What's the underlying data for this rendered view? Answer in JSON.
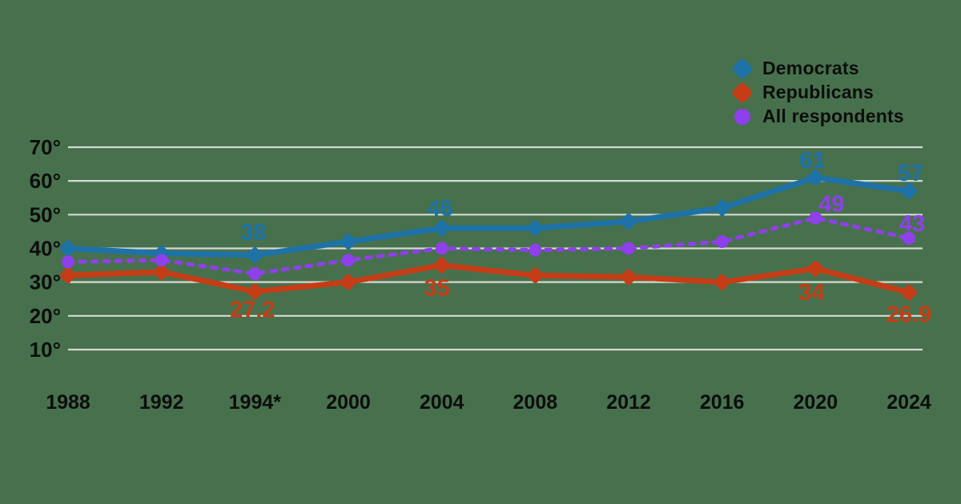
{
  "canvas": {
    "background_color": "#47714d",
    "text_color": "#0d0d0d",
    "gridline_color": "#d6d9d2"
  },
  "chart_data": {
    "type": "line",
    "categories": [
      "1988",
      "1992",
      "1994*",
      "2000",
      "2004",
      "2008",
      "2012",
      "2016",
      "2020",
      "2024"
    ],
    "x_axis": {
      "tick_labels": [
        "1988",
        "1992",
        "1994*",
        "2000",
        "2004",
        "2008",
        "2012",
        "2016",
        "2020",
        "2024"
      ]
    },
    "y_axis": {
      "tick_labels": [
        "10°",
        "20°",
        "30°",
        "40°",
        "50°",
        "60°",
        "70°"
      ],
      "tick_values": [
        10,
        20,
        30,
        40,
        50,
        60,
        70
      ],
      "min": 10,
      "max": 70,
      "unit": "°",
      "grid": "horizontal-only"
    },
    "legend_position": "top-right",
    "series": [
      {
        "name": "Democrats",
        "color": "#1d72a8",
        "line_style": "solid",
        "marker": "diamond",
        "values": [
          40,
          38.5,
          38,
          42,
          46,
          46,
          48,
          52,
          61,
          57
        ],
        "point_labels": [
          {
            "index": 2,
            "text": "38",
            "dx": -2,
            "dy": -19
          },
          {
            "index": 4,
            "text": "46",
            "dx": -2,
            "dy": -15
          },
          {
            "index": 8,
            "text": "61",
            "dx": -4,
            "dy": -12
          },
          {
            "index": 9,
            "text": "57",
            "dx": 2,
            "dy": -13
          }
        ]
      },
      {
        "name": "Republicans",
        "color": "#c53d16",
        "line_style": "solid",
        "marker": "diamond",
        "values": [
          32,
          33,
          27.2,
          30,
          35,
          32,
          31.5,
          30,
          34,
          26.9
        ],
        "point_labels": [
          {
            "index": 2,
            "text": "27.2",
            "dx": -3,
            "dy": 32
          },
          {
            "index": 4,
            "text": "35",
            "dx": -6,
            "dy": 38
          },
          {
            "index": 8,
            "text": "34",
            "dx": -5,
            "dy": 39
          },
          {
            "index": 9,
            "text": "26.9",
            "dx": 0,
            "dy": 37
          }
        ]
      },
      {
        "name": "All respondents",
        "color": "#8e40ea",
        "line_style": "dashed",
        "marker": "circle",
        "values": [
          36,
          36.5,
          32.5,
          36.5,
          40,
          39.5,
          40,
          42,
          49,
          43
        ],
        "point_labels": [
          {
            "index": 8,
            "text": "49",
            "dx": 20,
            "dy": -8
          },
          {
            "index": 9,
            "text": "43",
            "dx": 4,
            "dy": -9
          }
        ]
      }
    ]
  }
}
